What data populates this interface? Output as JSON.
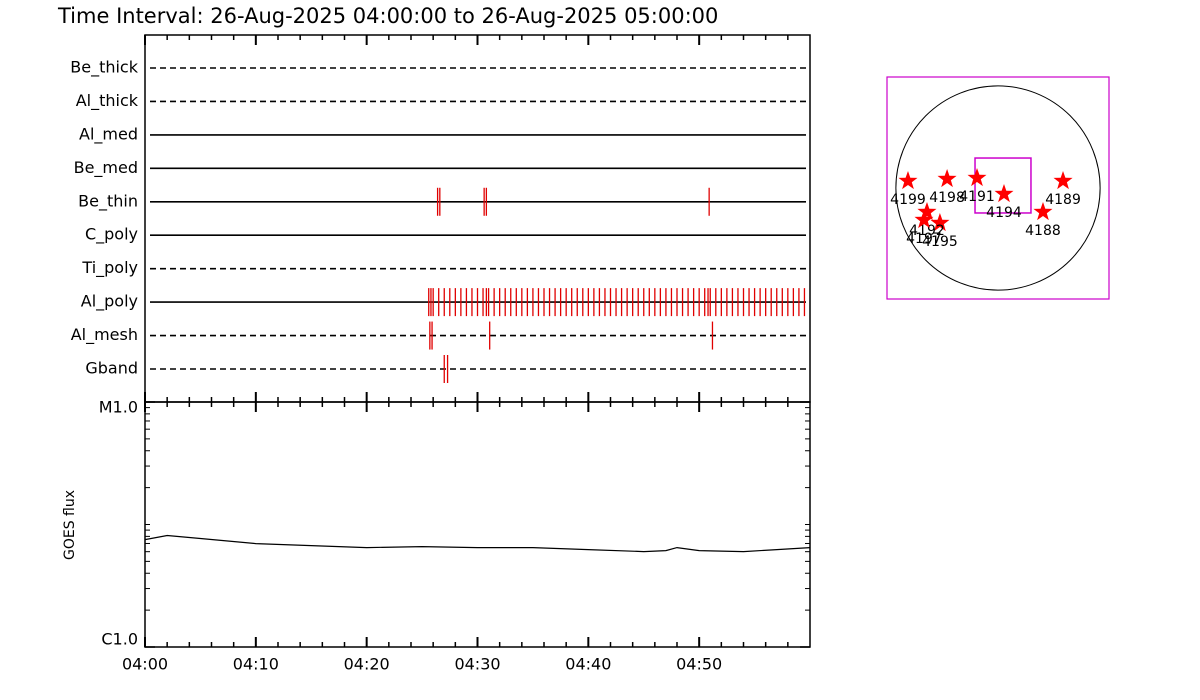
{
  "chart_data": [
    {
      "type": "timeline",
      "title": "Time Interval: 26-Aug-2025 04:00:00 to 26-Aug-2025 05:00:00",
      "event_color": "#e00000",
      "series": [
        {
          "name": "Be_thick",
          "line_style": "dashed",
          "values": []
        },
        {
          "name": "Al_thick",
          "line_style": "dashed",
          "values": []
        },
        {
          "name": "Al_med",
          "line_style": "solid",
          "values": []
        },
        {
          "name": "Be_med",
          "line_style": "solid",
          "values": []
        },
        {
          "name": "Be_thin",
          "line_style": "solid",
          "values": [
            26.4,
            26.6,
            30.6,
            30.8,
            50.9
          ]
        },
        {
          "name": "C_poly",
          "line_style": "solid",
          "values": []
        },
        {
          "name": "Ti_poly",
          "line_style": "dashed",
          "values": []
        },
        {
          "name": "Al_poly",
          "line_style": "solid",
          "values": [
            25.6,
            25.8,
            26.0,
            26.5,
            27,
            27.5,
            28,
            28.5,
            29,
            29.5,
            30,
            30.5,
            30.8,
            31,
            31.5,
            32,
            32.5,
            33,
            33.5,
            34,
            34.5,
            35,
            35.5,
            36,
            36.5,
            37,
            37.5,
            38,
            38.5,
            39,
            39.5,
            40,
            40.5,
            41,
            41.5,
            42,
            42.5,
            43,
            43.5,
            44,
            44.5,
            45,
            45.5,
            46,
            46.5,
            47,
            47.5,
            48,
            48.5,
            49,
            49.5,
            50,
            50.5,
            50.8,
            51,
            51.5,
            52,
            52.5,
            53,
            53.5,
            54,
            54.5,
            55,
            55.5,
            56,
            56.5,
            57,
            57.5,
            58,
            58.5,
            59,
            59.5
          ]
        },
        {
          "name": "Al_mesh",
          "line_style": "dashed",
          "values": [
            25.7,
            25.9,
            31.1,
            51.2
          ]
        },
        {
          "name": "Gband",
          "line_style": "dashed",
          "values": [
            27.0,
            27.3
          ]
        }
      ]
    },
    {
      "type": "line",
      "ylabel": "GOES flux",
      "log": true,
      "color": "#000000",
      "xlim": [
        0,
        60
      ],
      "xticks": [
        {
          "value": 0,
          "label": "04:00"
        },
        {
          "value": 10,
          "label": "04:10"
        },
        {
          "value": 20,
          "label": "04:20"
        },
        {
          "value": 30,
          "label": "04:30"
        },
        {
          "value": 40,
          "label": "04:40"
        },
        {
          "value": 50,
          "label": "04:50"
        }
      ],
      "xminorticks": [
        2,
        4,
        6,
        8,
        12,
        14,
        16,
        18,
        22,
        24,
        26,
        28,
        32,
        34,
        36,
        38,
        42,
        44,
        46,
        48,
        52,
        54,
        56,
        58
      ],
      "ylim": [
        1e-06,
        0.0001
      ],
      "yticks": [
        {
          "value": 1e-06,
          "label": "C1.0"
        },
        {
          "value": 0.0001,
          "label": "M1.0"
        }
      ],
      "yminorticks": [
        2e-06,
        3e-06,
        4e-06,
        5e-06,
        6e-06,
        7e-06,
        8e-06,
        9e-06,
        1e-05,
        2e-05,
        3e-05,
        4e-05,
        5e-05,
        6e-05,
        7e-05,
        8e-05,
        9e-05
      ],
      "x": [
        0,
        2,
        5,
        10,
        15,
        20,
        25,
        30,
        35,
        40,
        45,
        47,
        48,
        50,
        54,
        57,
        60
      ],
      "values": [
        7.53e-06,
        8.13e-06,
        7.68e-06,
        6.98e-06,
        6.73e-06,
        6.48e-06,
        6.6e-06,
        6.48e-06,
        6.48e-06,
        6.24e-06,
        6.01e-06,
        6.12e-06,
        6.48e-06,
        6.12e-06,
        6.01e-06,
        6.24e-06,
        6.48e-06
      ]
    },
    {
      "type": "map",
      "frame_color": "#cc00cc",
      "star_color": "#ff0000",
      "xlim": [
        -1000,
        1000
      ],
      "ylim": [
        -1000,
        1000
      ],
      "radius": 920,
      "fov": {
        "x": [
          -207,
          297
        ],
        "y": [
          -225,
          270
        ]
      },
      "labels": [
        "4199",
        "4198",
        "4191",
        "4194",
        "4189",
        "4188",
        "4195",
        "4192",
        "4197"
      ],
      "x": [
        -811,
        -459,
        -189,
        54,
        586,
        405,
        -523,
        -640,
        -667
      ],
      "values": [
        63,
        81,
        90,
        -54,
        63,
        -216,
        -315,
        -216,
        -288
      ]
    }
  ]
}
